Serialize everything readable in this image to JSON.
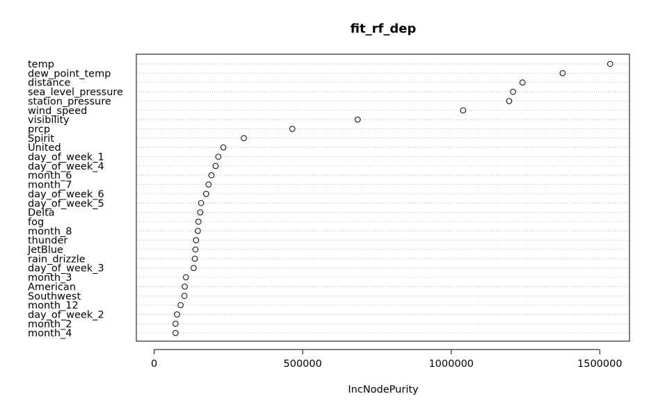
{
  "chart_data": {
    "type": "scatter",
    "title": "fit_rf_dep",
    "xlabel": "IncNodePurity",
    "ylabel": "",
    "xlim": [
      -60000,
      1600000
    ],
    "xticks": [
      0,
      500000,
      1000000,
      1500000
    ],
    "xtick_labels": [
      "0",
      "500000",
      "1000000",
      "1500000"
    ],
    "grid": "horizontal-dotted",
    "points": [
      {
        "label": "temp",
        "value": 1535000
      },
      {
        "label": "dew_point_temp",
        "value": 1375000
      },
      {
        "label": "distance",
        "value": 1240000
      },
      {
        "label": "sea_level_pressure",
        "value": 1208000
      },
      {
        "label": "station_pressure",
        "value": 1195000
      },
      {
        "label": "wind_speed",
        "value": 1040000
      },
      {
        "label": "visibility",
        "value": 685000
      },
      {
        "label": "prcp",
        "value": 465000
      },
      {
        "label": "Spirit",
        "value": 302000
      },
      {
        "label": "United",
        "value": 233000
      },
      {
        "label": "day_of_week_1",
        "value": 216000
      },
      {
        "label": "day_of_week_4",
        "value": 207000
      },
      {
        "label": "month_6",
        "value": 193000
      },
      {
        "label": "month_7",
        "value": 183000
      },
      {
        "label": "day_of_week_6",
        "value": 175000
      },
      {
        "label": "day_of_week_5",
        "value": 158000
      },
      {
        "label": "Delta",
        "value": 155000
      },
      {
        "label": "fog",
        "value": 149000
      },
      {
        "label": "month_8",
        "value": 147000
      },
      {
        "label": "thunder",
        "value": 141000
      },
      {
        "label": "JetBlue",
        "value": 139000
      },
      {
        "label": "rain_drizzle",
        "value": 137000
      },
      {
        "label": "day_of_week_3",
        "value": 133000
      },
      {
        "label": "month_3",
        "value": 107000
      },
      {
        "label": "American",
        "value": 103000
      },
      {
        "label": "Southwest",
        "value": 102000
      },
      {
        "label": "month_12",
        "value": 89000
      },
      {
        "label": "day_of_week_2",
        "value": 77000
      },
      {
        "label": "month_2",
        "value": 72000
      },
      {
        "label": "month_4",
        "value": 72000
      }
    ]
  }
}
